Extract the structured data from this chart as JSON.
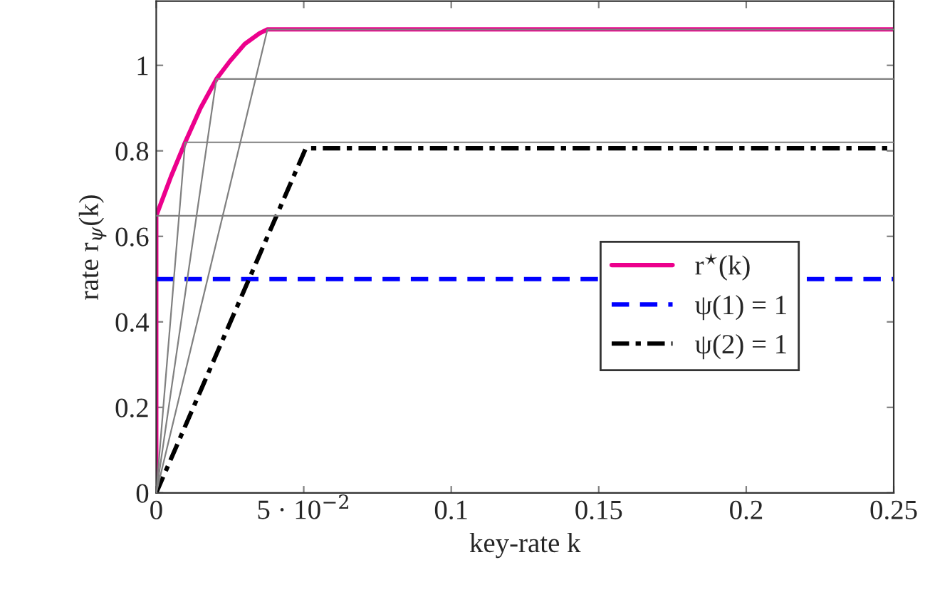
{
  "chart_data": {
    "type": "line",
    "xlabel": "key-rate k",
    "ylabel": "rate r$_{ψ}$(k)",
    "xlim": [
      0,
      0.25
    ],
    "ylim": [
      0,
      1.15
    ],
    "xticks": [
      0,
      {
        "value": 0.05,
        "label": "5 · 10$^{−2}$"
      },
      0.1,
      0.15,
      0.2,
      0.25
    ],
    "yticks": [
      0,
      0.2,
      0.4,
      0.6,
      0.8,
      1
    ],
    "grid": false,
    "legend": "right",
    "series": [
      {
        "color": "#808080",
        "x": [
          0,
          0.25
        ],
        "values": [
          0.648,
          0.648
        ]
      },
      {
        "color": "#808080",
        "x": [
          0,
          0.0098,
          0.25
        ],
        "values": [
          0,
          0.82,
          0.82
        ]
      },
      {
        "color": "#808080",
        "x": [
          0,
          0.0204,
          0.25
        ],
        "values": [
          0,
          0.968,
          0.968
        ]
      },
      {
        "color": "#808080",
        "x": [
          0,
          0.0377,
          0.25
        ],
        "values": [
          0,
          1.084,
          1.084
        ]
      },
      {
        "name": "r$^{⋆}$(k)",
        "color": "#ec008c",
        "x": [
          0,
          0,
          0.005,
          0.0098,
          0.015,
          0.0204,
          0.025,
          0.03,
          0.035,
          0.0377,
          0.25
        ],
        "values": [
          0,
          0.648,
          0.74,
          0.82,
          0.9,
          0.968,
          1.01,
          1.05,
          1.075,
          1.084,
          1.084
        ]
      },
      {
        "name": "ψ(1) = 1",
        "color": "#0000ff",
        "line_style": "dashed",
        "x": [
          0,
          0.25
        ],
        "values": [
          0.5,
          0.5
        ]
      },
      {
        "name": "ψ(2) = 1",
        "color": "#000000",
        "line_style": "dashdot",
        "x": [
          0,
          0.0507,
          0.25
        ],
        "values": [
          0,
          0.806,
          0.806
        ]
      }
    ]
  }
}
